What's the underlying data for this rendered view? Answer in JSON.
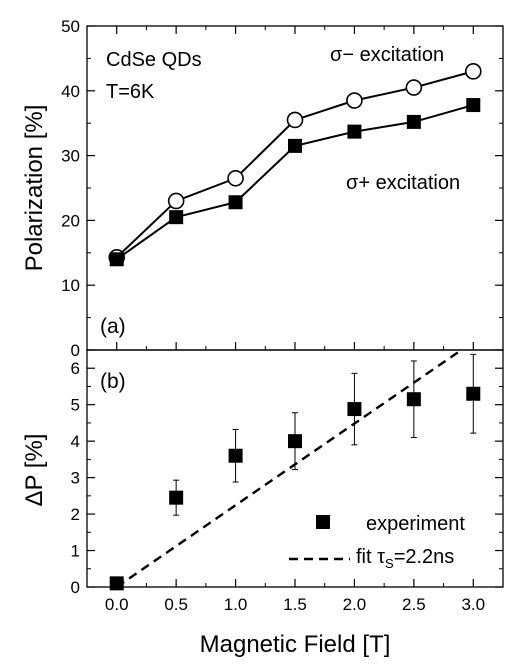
{
  "chart_data": [
    {
      "type": "line",
      "panel": "(a)",
      "ylabel": "Polarization [%]",
      "xlabel": "",
      "ylim": [
        0,
        50
      ],
      "yticks": [
        0,
        10,
        20,
        30,
        40,
        50
      ],
      "xlim": [
        -0.25,
        3.25
      ],
      "annotations": [
        "CdSe QDs",
        "T=6K"
      ],
      "series": [
        {
          "name": "σ− excitation",
          "marker": "open-circle",
          "x": [
            0.0,
            0.5,
            1.0,
            1.5,
            2.0,
            2.5,
            3.0
          ],
          "y": [
            14.3,
            23.0,
            26.5,
            35.5,
            38.5,
            40.5,
            43.0
          ]
        },
        {
          "name": "σ+ excitation",
          "marker": "filled-square",
          "x": [
            0.0,
            0.5,
            1.0,
            1.5,
            2.0,
            2.5,
            3.0
          ],
          "y": [
            14.0,
            20.5,
            22.8,
            31.5,
            33.7,
            35.2,
            37.8
          ]
        }
      ]
    },
    {
      "type": "scatter",
      "panel": "(b)",
      "ylabel": "ΔP [%]",
      "xlabel": "Magnetic Field [T]",
      "ylim": [
        0,
        6.5
      ],
      "yticks": [
        0,
        1,
        2,
        3,
        4,
        5,
        6
      ],
      "xlim": [
        -0.25,
        3.25
      ],
      "xticks": [
        0.0,
        0.5,
        1.0,
        1.5,
        2.0,
        2.5,
        3.0
      ],
      "xtick_labels": [
        "0.0",
        "0.5",
        "1.0",
        "1.5",
        "2.0",
        "2.5",
        "3.0"
      ],
      "series": [
        {
          "name": "experiment",
          "marker": "filled-square",
          "x": [
            0.0,
            0.5,
            1.0,
            1.5,
            2.0,
            2.5,
            3.0
          ],
          "y": [
            0.1,
            2.45,
            3.6,
            4.0,
            4.88,
            5.15,
            5.3
          ],
          "err": [
            0.0,
            0.48,
            0.72,
            0.78,
            0.98,
            1.05,
            1.08
          ]
        },
        {
          "name_prefix": "fit τ",
          "name_sub": "S",
          "name_suffix": "=2.2ns",
          "style": "dashed",
          "x": [
            0.0,
            2.9
          ],
          "y": [
            0.0,
            6.5
          ]
        }
      ]
    }
  ]
}
